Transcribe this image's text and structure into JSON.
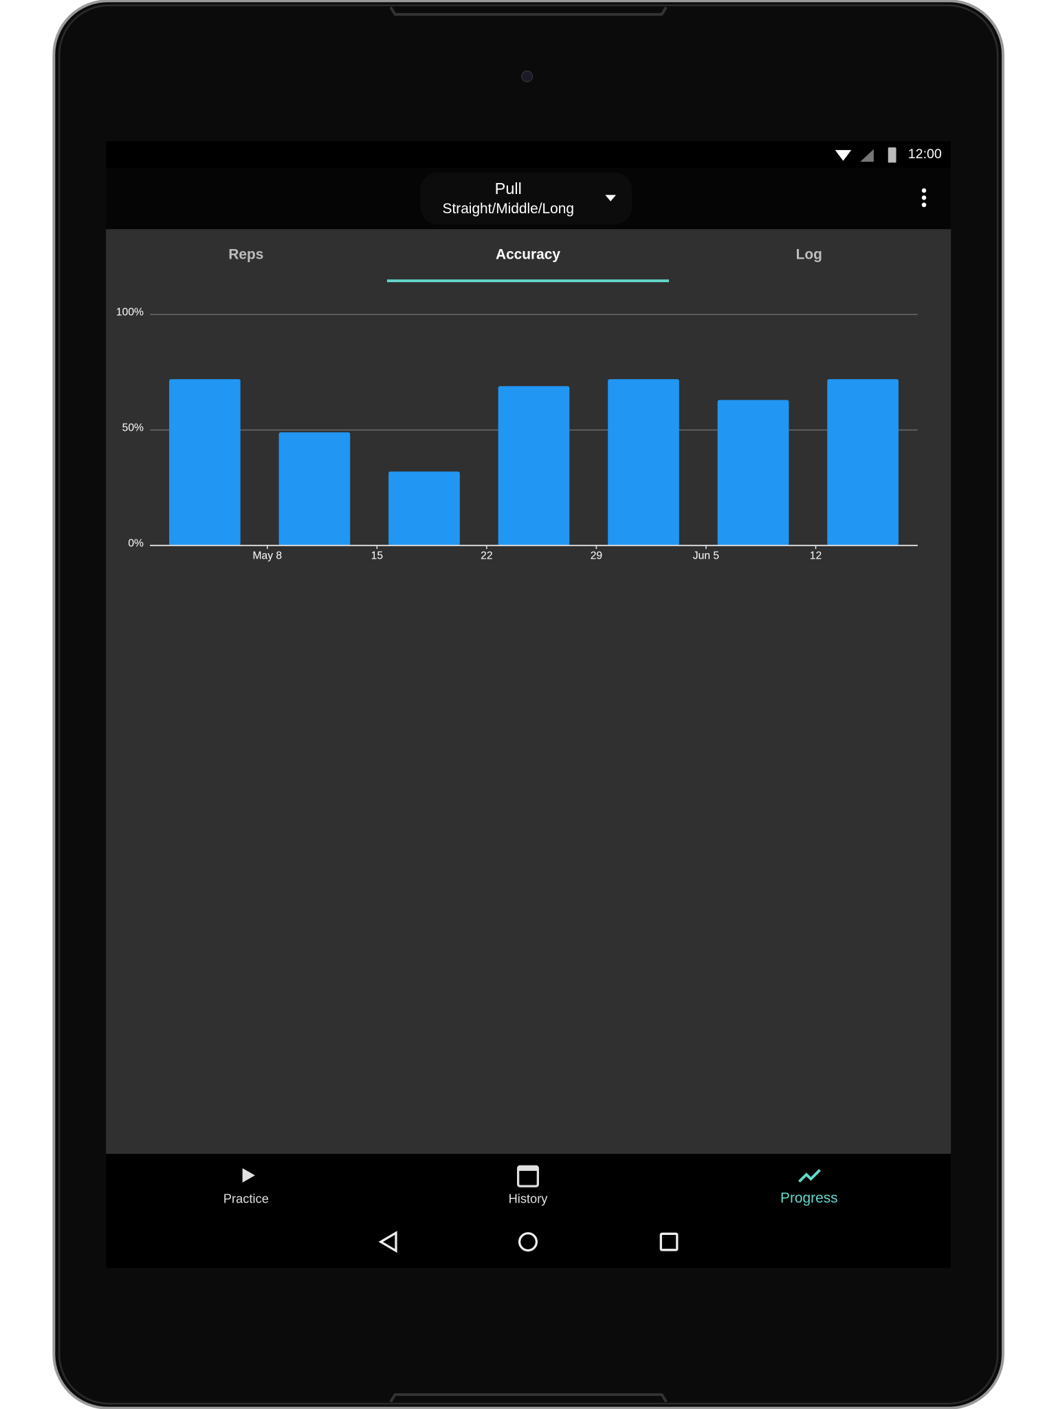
{
  "status_bar": {
    "time": "12:00"
  },
  "toolbar": {
    "title": "Pull",
    "subtitle": "Straight/Middle/Long"
  },
  "tabs": [
    "Reps",
    "Accuracy",
    "Log"
  ],
  "chart_data": {
    "type": "bar",
    "categories": [
      null,
      null,
      null,
      null,
      null,
      null,
      null
    ],
    "values": [
      72,
      49,
      32,
      69,
      72,
      63,
      72
    ],
    "color": "#2196f3",
    "ylim": [
      0,
      100
    ],
    "yticks": [
      {
        "value": 0,
        "label": "0%"
      },
      {
        "value": 50,
        "label": "50%"
      },
      {
        "value": 100,
        "label": "100%"
      }
    ],
    "x_tick_labels": [
      "May 8",
      "15",
      "22",
      "29",
      "Jun 5",
      "12"
    ],
    "grid": true
  },
  "bottom_nav": [
    "Practice",
    "History",
    "Progress"
  ]
}
